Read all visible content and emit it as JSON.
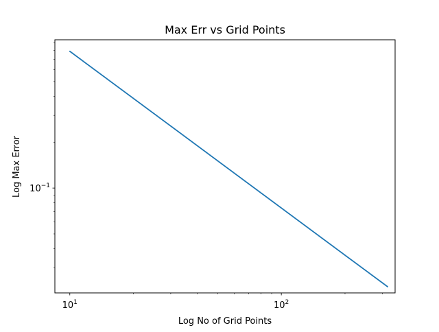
{
  "chart_data": {
    "type": "line",
    "title": "Max Err vs Grid Points",
    "xlabel": "Log No of Grid Points",
    "ylabel": "Log Max Error",
    "xscale": "log",
    "yscale": "log",
    "xlim": [
      8.5,
      345
    ],
    "ylim": [
      0.0205,
      0.94
    ],
    "grid": false,
    "x_major_ticks": [
      {
        "value": 10,
        "base": "10",
        "exp": "1"
      },
      {
        "value": 100,
        "base": "10",
        "exp": "2"
      }
    ],
    "y_major_ticks": [
      {
        "value": 0.1,
        "base": "10",
        "exp": "−1"
      }
    ],
    "x_minor_ticks": [
      20,
      30,
      40,
      50,
      60,
      70,
      80,
      90,
      200,
      300
    ],
    "y_minor_ticks": [
      0.03,
      0.04,
      0.05,
      0.06,
      0.07,
      0.08,
      0.09,
      0.2,
      0.3,
      0.4,
      0.5,
      0.6,
      0.7,
      0.8,
      0.9
    ],
    "series": [
      {
        "color": "#1f77b4",
        "x": [
          10,
          318
        ],
        "y": [
          0.79,
          0.0225
        ]
      }
    ]
  }
}
